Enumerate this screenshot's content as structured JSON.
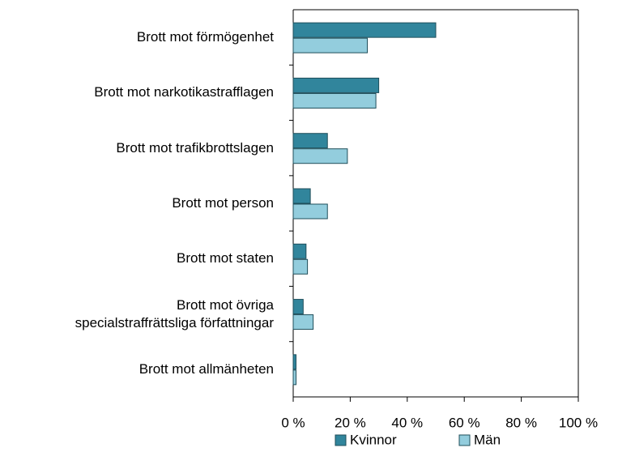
{
  "chart_data": {
    "type": "hbar",
    "categories": [
      "Brott mot förmögenhet",
      "Brott mot narkotikastrafflagen",
      "Brott mot trafikbrottslagen",
      "Brott mot person",
      "Brott mot staten",
      "Brott mot övriga\nspecialstraffrättsliga författningar",
      "Brott mot allmänheten"
    ],
    "series": [
      {
        "name": "Kvinnor",
        "color": "#31859c",
        "values": [
          50,
          30,
          12,
          6,
          4.5,
          3.5,
          1
        ]
      },
      {
        "name": "Män",
        "color": "#93cddd",
        "values": [
          26,
          29,
          19,
          12,
          5,
          7,
          1
        ]
      }
    ],
    "xlim": [
      0,
      100
    ],
    "xticks": [
      {
        "value": 0,
        "label": "0 %"
      },
      {
        "value": 20,
        "label": "20 %"
      },
      {
        "value": 40,
        "label": "40 %"
      },
      {
        "value": 60,
        "label": "60 %"
      },
      {
        "value": 80,
        "label": "80 %"
      },
      {
        "value": 100,
        "label": "100 %"
      }
    ],
    "legend": "bottom"
  }
}
